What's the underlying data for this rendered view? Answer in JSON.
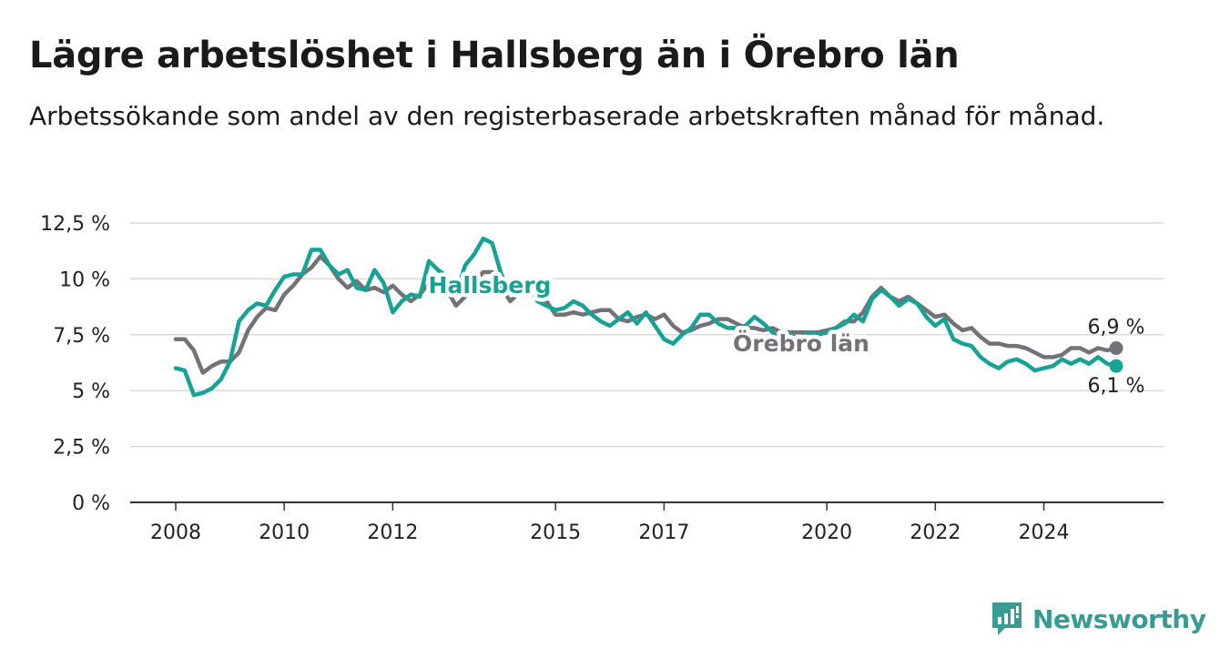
{
  "header": {
    "title": "Lägre arbetslöshet i Hallsberg än i Örebro län",
    "subtitle": "Arbetssökande som andel av den registerbaserade arbetskraften månad för månad."
  },
  "logo": {
    "text": "Newsworthy",
    "icon": "newsworthy-logo-icon",
    "color": "#3a9a94"
  },
  "chart_data": {
    "type": "line",
    "title": "Lägre arbetslöshet i Hallsberg än i Örebro län",
    "subtitle": "Arbetssökande som andel av den registerbaserade arbetskraften månad för månad.",
    "xlabel": "",
    "ylabel": "",
    "xlim": [
      "2008-01",
      "2025-06"
    ],
    "ylim": [
      0,
      12.5
    ],
    "y_ticks": [
      "0 %",
      "2,5 %",
      "5 %",
      "7,5 %",
      "10 %",
      "12,5 %"
    ],
    "y_tick_values": [
      0,
      2.5,
      5,
      7.5,
      10,
      12.5
    ],
    "x_ticks": [
      "2008",
      "2010",
      "2012",
      "2015",
      "2017",
      "2020",
      "2022",
      "2024"
    ],
    "grid": true,
    "legend": "inline labels",
    "series": [
      {
        "name": "Örebro län",
        "color": "#737278",
        "end_label": "6,9 %",
        "points": [
          [
            "2008-01",
            7.3
          ],
          [
            "2008-03",
            7.3
          ],
          [
            "2008-05",
            6.8
          ],
          [
            "2008-07",
            5.8
          ],
          [
            "2008-09",
            6.1
          ],
          [
            "2008-11",
            6.3
          ],
          [
            "2009-01",
            6.3
          ],
          [
            "2009-03",
            6.7
          ],
          [
            "2009-05",
            7.7
          ],
          [
            "2009-07",
            8.3
          ],
          [
            "2009-09",
            8.7
          ],
          [
            "2009-11",
            8.6
          ],
          [
            "2010-01",
            9.3
          ],
          [
            "2010-03",
            9.7
          ],
          [
            "2010-05",
            10.2
          ],
          [
            "2010-07",
            10.5
          ],
          [
            "2010-09",
            11.0
          ],
          [
            "2010-11",
            10.6
          ],
          [
            "2011-01",
            10.0
          ],
          [
            "2011-03",
            9.6
          ],
          [
            "2011-05",
            9.9
          ],
          [
            "2011-07",
            9.5
          ],
          [
            "2011-09",
            9.6
          ],
          [
            "2011-11",
            9.4
          ],
          [
            "2012-01",
            9.7
          ],
          [
            "2012-03",
            9.3
          ],
          [
            "2012-05",
            9.0
          ],
          [
            "2012-07",
            9.3
          ],
          [
            "2012-09",
            9.8
          ],
          [
            "2012-11",
            9.9
          ],
          [
            "2013-01",
            9.5
          ],
          [
            "2013-03",
            8.8
          ],
          [
            "2013-05",
            9.2
          ],
          [
            "2013-07",
            9.8
          ],
          [
            "2013-09",
            10.3
          ],
          [
            "2013-11",
            10.3
          ],
          [
            "2014-01",
            9.6
          ],
          [
            "2014-03",
            9.0
          ],
          [
            "2014-05",
            9.4
          ],
          [
            "2014-07",
            9.6
          ],
          [
            "2014-09",
            9.4
          ],
          [
            "2014-11",
            9.0
          ],
          [
            "2015-01",
            8.4
          ],
          [
            "2015-03",
            8.4
          ],
          [
            "2015-05",
            8.5
          ],
          [
            "2015-07",
            8.4
          ],
          [
            "2015-09",
            8.5
          ],
          [
            "2015-11",
            8.6
          ],
          [
            "2016-01",
            8.6
          ],
          [
            "2016-03",
            8.2
          ],
          [
            "2016-05",
            8.1
          ],
          [
            "2016-07",
            8.3
          ],
          [
            "2016-09",
            8.4
          ],
          [
            "2016-11",
            8.2
          ],
          [
            "2017-01",
            8.4
          ],
          [
            "2017-03",
            7.9
          ],
          [
            "2017-05",
            7.6
          ],
          [
            "2017-07",
            7.7
          ],
          [
            "2017-09",
            7.9
          ],
          [
            "2017-11",
            8.0
          ],
          [
            "2018-01",
            8.2
          ],
          [
            "2018-03",
            8.2
          ],
          [
            "2018-05",
            8.0
          ],
          [
            "2018-07",
            7.8
          ],
          [
            "2018-09",
            7.8
          ],
          [
            "2018-11",
            7.7
          ],
          [
            "2019-01",
            7.8
          ],
          [
            "2019-03",
            7.6
          ],
          [
            "2019-05",
            7.6
          ],
          [
            "2019-07",
            7.6
          ],
          [
            "2019-09",
            7.6
          ],
          [
            "2019-11",
            7.6
          ],
          [
            "2020-01",
            7.7
          ],
          [
            "2020-03",
            7.8
          ],
          [
            "2020-05",
            8.1
          ],
          [
            "2020-07",
            8.1
          ],
          [
            "2020-09",
            8.5
          ],
          [
            "2020-11",
            9.2
          ],
          [
            "2021-01",
            9.6
          ],
          [
            "2021-03",
            9.2
          ],
          [
            "2021-05",
            9.0
          ],
          [
            "2021-07",
            9.2
          ],
          [
            "2021-09",
            8.9
          ],
          [
            "2021-11",
            8.6
          ],
          [
            "2022-01",
            8.3
          ],
          [
            "2022-03",
            8.4
          ],
          [
            "2022-05",
            8.0
          ],
          [
            "2022-07",
            7.7
          ],
          [
            "2022-09",
            7.8
          ],
          [
            "2022-11",
            7.4
          ],
          [
            "2023-01",
            7.1
          ],
          [
            "2023-03",
            7.1
          ],
          [
            "2023-05",
            7.0
          ],
          [
            "2023-07",
            7.0
          ],
          [
            "2023-09",
            6.9
          ],
          [
            "2023-11",
            6.7
          ],
          [
            "2024-01",
            6.5
          ],
          [
            "2024-03",
            6.5
          ],
          [
            "2024-05",
            6.6
          ],
          [
            "2024-07",
            6.9
          ],
          [
            "2024-09",
            6.9
          ],
          [
            "2024-11",
            6.7
          ],
          [
            "2025-01",
            6.9
          ],
          [
            "2025-03",
            6.8
          ],
          [
            "2025-05",
            6.9
          ]
        ]
      },
      {
        "name": "Hallsberg",
        "color": "#16a396",
        "end_label": "6,1 %",
        "points": [
          [
            "2008-01",
            6.0
          ],
          [
            "2008-03",
            5.9
          ],
          [
            "2008-05",
            4.8
          ],
          [
            "2008-07",
            4.9
          ],
          [
            "2008-09",
            5.1
          ],
          [
            "2008-11",
            5.5
          ],
          [
            "2009-01",
            6.3
          ],
          [
            "2009-03",
            8.1
          ],
          [
            "2009-05",
            8.6
          ],
          [
            "2009-07",
            8.9
          ],
          [
            "2009-09",
            8.8
          ],
          [
            "2009-11",
            9.5
          ],
          [
            "2010-01",
            10.1
          ],
          [
            "2010-03",
            10.2
          ],
          [
            "2010-05",
            10.2
          ],
          [
            "2010-07",
            11.3
          ],
          [
            "2010-09",
            11.3
          ],
          [
            "2010-11",
            10.6
          ],
          [
            "2011-01",
            10.2
          ],
          [
            "2011-03",
            10.4
          ],
          [
            "2011-05",
            9.6
          ],
          [
            "2011-07",
            9.5
          ],
          [
            "2011-09",
            10.4
          ],
          [
            "2011-11",
            9.8
          ],
          [
            "2012-01",
            8.5
          ],
          [
            "2012-03",
            9.0
          ],
          [
            "2012-05",
            9.3
          ],
          [
            "2012-07",
            9.2
          ],
          [
            "2012-09",
            10.8
          ],
          [
            "2012-11",
            10.4
          ],
          [
            "2013-01",
            10.1
          ],
          [
            "2013-03",
            9.3
          ],
          [
            "2013-05",
            10.6
          ],
          [
            "2013-07",
            11.1
          ],
          [
            "2013-09",
            11.8
          ],
          [
            "2013-11",
            11.6
          ],
          [
            "2014-01",
            10.2
          ],
          [
            "2014-03",
            9.5
          ],
          [
            "2014-05",
            9.7
          ],
          [
            "2014-07",
            9.9
          ],
          [
            "2014-09",
            9.0
          ],
          [
            "2014-11",
            8.8
          ],
          [
            "2015-01",
            8.6
          ],
          [
            "2015-03",
            8.7
          ],
          [
            "2015-05",
            9.0
          ],
          [
            "2015-07",
            8.8
          ],
          [
            "2015-09",
            8.4
          ],
          [
            "2015-11",
            8.1
          ],
          [
            "2016-01",
            7.9
          ],
          [
            "2016-03",
            8.2
          ],
          [
            "2016-05",
            8.5
          ],
          [
            "2016-07",
            8.0
          ],
          [
            "2016-09",
            8.5
          ],
          [
            "2016-11",
            7.9
          ],
          [
            "2017-01",
            7.3
          ],
          [
            "2017-03",
            7.1
          ],
          [
            "2017-05",
            7.5
          ],
          [
            "2017-07",
            7.8
          ],
          [
            "2017-09",
            8.4
          ],
          [
            "2017-11",
            8.4
          ],
          [
            "2018-01",
            8.0
          ],
          [
            "2018-03",
            7.8
          ],
          [
            "2018-05",
            7.8
          ],
          [
            "2018-07",
            7.9
          ],
          [
            "2018-09",
            8.3
          ],
          [
            "2018-11",
            8.0
          ],
          [
            "2019-01",
            7.6
          ],
          [
            "2019-03",
            7.3
          ],
          [
            "2019-05",
            7.5
          ],
          [
            "2019-07",
            7.3
          ],
          [
            "2019-09",
            7.6
          ],
          [
            "2019-11",
            7.5
          ],
          [
            "2020-01",
            7.6
          ],
          [
            "2020-03",
            7.8
          ],
          [
            "2020-05",
            8.0
          ],
          [
            "2020-07",
            8.4
          ],
          [
            "2020-09",
            8.1
          ],
          [
            "2020-11",
            9.1
          ],
          [
            "2021-01",
            9.5
          ],
          [
            "2021-03",
            9.2
          ],
          [
            "2021-05",
            8.8
          ],
          [
            "2021-07",
            9.1
          ],
          [
            "2021-09",
            8.9
          ],
          [
            "2021-11",
            8.3
          ],
          [
            "2022-01",
            7.9
          ],
          [
            "2022-03",
            8.2
          ],
          [
            "2022-05",
            7.3
          ],
          [
            "2022-07",
            7.1
          ],
          [
            "2022-09",
            7.0
          ],
          [
            "2022-11",
            6.5
          ],
          [
            "2023-01",
            6.2
          ],
          [
            "2023-03",
            6.0
          ],
          [
            "2023-05",
            6.3
          ],
          [
            "2023-07",
            6.4
          ],
          [
            "2023-09",
            6.2
          ],
          [
            "2023-11",
            5.9
          ],
          [
            "2024-01",
            6.0
          ],
          [
            "2024-03",
            6.1
          ],
          [
            "2024-05",
            6.4
          ],
          [
            "2024-07",
            6.2
          ],
          [
            "2024-09",
            6.4
          ],
          [
            "2024-11",
            6.2
          ],
          [
            "2025-01",
            6.5
          ],
          [
            "2025-03",
            6.2
          ],
          [
            "2025-05",
            6.1
          ]
        ]
      }
    ]
  }
}
